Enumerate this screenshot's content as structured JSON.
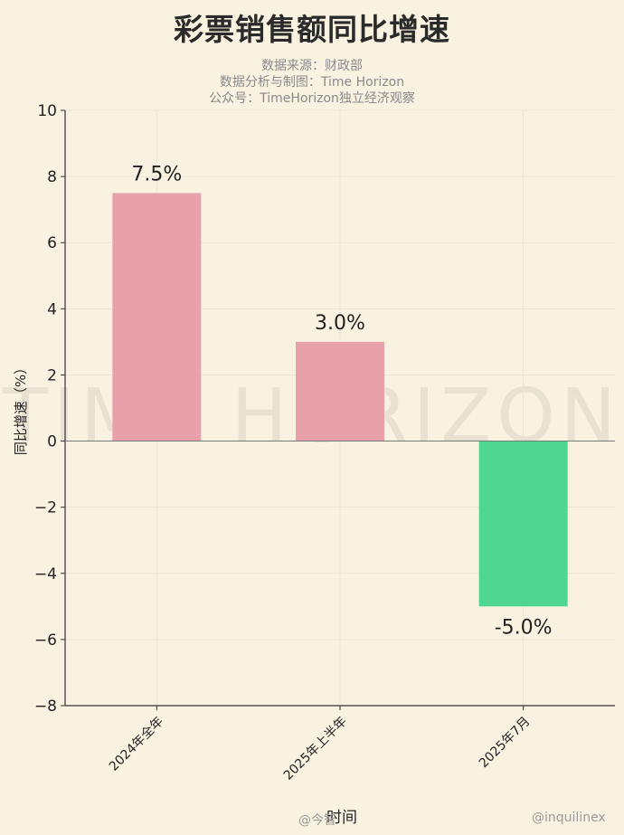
{
  "title": "彩票销售额同比增速",
  "subtitle_lines": [
    "数据来源：财政部",
    "数据分析与制图：Time Horizon",
    "公众号：TimeHorizon独立经济观察"
  ],
  "watermark_text": "TIME HORIZON",
  "corner_watermarks": [
    "@今智",
    "@inquilinex"
  ],
  "chart_data": {
    "type": "bar",
    "categories": [
      "2024年全年",
      "2025年上半年",
      "2025年7月"
    ],
    "values": [
      7.5,
      3.0,
      -5.0
    ],
    "data_labels": [
      "7.5%",
      "3.0%",
      "-5.0%"
    ],
    "colors": [
      "#e8a0ab",
      "#e8a0ab",
      "#4fd690"
    ],
    "xlabel": "时间",
    "ylabel": "同比增速（%）",
    "ylim": [
      -8,
      10
    ],
    "yticks": [
      10,
      8,
      6,
      4,
      2,
      0,
      -2,
      -4,
      -6,
      -8
    ],
    "ytick_labels": [
      "10",
      "8",
      "6",
      "4",
      "2",
      "0",
      "−2",
      "−4",
      "−6",
      "−8"
    ],
    "grid": true,
    "legend": "none"
  }
}
